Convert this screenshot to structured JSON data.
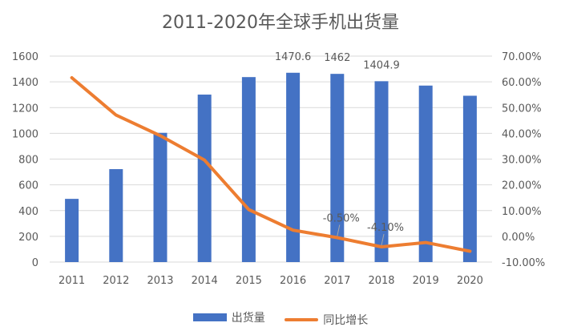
{
  "chart_data": {
    "type": "bar",
    "title": "2011-2020年全球手机出货量",
    "categories": [
      "2011",
      "2012",
      "2013",
      "2014",
      "2015",
      "2016",
      "2017",
      "2018",
      "2019",
      "2020"
    ],
    "series": [
      {
        "name": "出货量",
        "type": "bar",
        "axis": "left",
        "color": "#4472C4",
        "values": [
          491,
          722,
          1004,
          1301,
          1437,
          1470.6,
          1462,
          1404.9,
          1371,
          1292
        ]
      },
      {
        "name": "同比增长",
        "type": "line",
        "axis": "right",
        "color": "#ED7D31",
        "values": [
          61.6,
          47.1,
          39.1,
          29.6,
          10.4,
          2.4,
          -0.5,
          -4.1,
          -2.4,
          -5.8
        ]
      }
    ],
    "bar_data_labels": [
      {
        "index": 5,
        "text": "1470.6"
      },
      {
        "index": 6,
        "text": "1462"
      },
      {
        "index": 7,
        "text": "1404.9"
      }
    ],
    "line_data_labels": [
      {
        "index": 6,
        "text": "-0.50%"
      },
      {
        "index": 7,
        "text": "-4.10%"
      }
    ],
    "y_left": {
      "min": 0,
      "max": 1600,
      "step": 200,
      "ticks": [
        "0",
        "200",
        "400",
        "600",
        "800",
        "1000",
        "1200",
        "1400",
        "1600"
      ]
    },
    "y_right": {
      "min": -10,
      "max": 70,
      "step": 10,
      "ticks": [
        "-10.00%",
        "0.00%",
        "10.00%",
        "20.00%",
        "30.00%",
        "40.00%",
        "50.00%",
        "60.00%",
        "70.00%"
      ]
    },
    "grid": true,
    "legend_position": "bottom"
  }
}
